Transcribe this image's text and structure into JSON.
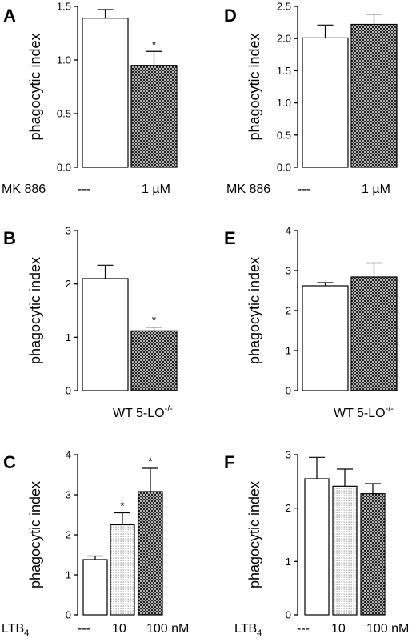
{
  "chart_data": [
    {
      "panel": "A",
      "type": "bar",
      "ylabel": "phagocytic index",
      "ylim": [
        0,
        1.5
      ],
      "yticks": [
        "0.0",
        "0.5",
        "1.0",
        "1.5"
      ],
      "row_label": "MK 886",
      "categories": [
        "---",
        "1 µM"
      ],
      "values": [
        1.39,
        0.95
      ],
      "errors": [
        0.08,
        0.13
      ],
      "fills": [
        "white",
        "crosshatch"
      ],
      "significance": [
        "",
        "*"
      ]
    },
    {
      "panel": "D",
      "type": "bar",
      "ylabel": "phagocytic index",
      "ylim": [
        0,
        2.5
      ],
      "yticks": [
        "0.0",
        "0.5",
        "1.0",
        "1.5",
        "2.0",
        "2.5"
      ],
      "row_label": "MK 886",
      "categories": [
        "---",
        "1 µM"
      ],
      "values": [
        2.01,
        2.22
      ],
      "errors": [
        0.2,
        0.16
      ],
      "fills": [
        "white",
        "crosshatch"
      ],
      "significance": [
        "",
        ""
      ]
    },
    {
      "panel": "B",
      "type": "bar",
      "ylabel": "phagocytic index",
      "ylim": [
        0,
        3
      ],
      "yticks": [
        "0",
        "1",
        "2",
        "3"
      ],
      "row_label": "",
      "categories": [
        "WT",
        "5-LO"
      ],
      "category_sup": [
        "",
        "-/-"
      ],
      "values": [
        2.1,
        1.12
      ],
      "errors": [
        0.25,
        0.07
      ],
      "fills": [
        "white",
        "crosshatch"
      ],
      "significance": [
        "",
        "*"
      ]
    },
    {
      "panel": "E",
      "type": "bar",
      "ylabel": "phagocytic index",
      "ylim": [
        0,
        4
      ],
      "yticks": [
        "0",
        "1",
        "2",
        "3",
        "4"
      ],
      "row_label": "",
      "categories": [
        "WT",
        "5-LO"
      ],
      "category_sup": [
        "",
        "-/-"
      ],
      "values": [
        2.62,
        2.84
      ],
      "errors": [
        0.08,
        0.35
      ],
      "fills": [
        "white",
        "crosshatch"
      ],
      "significance": [
        "",
        ""
      ]
    },
    {
      "panel": "C",
      "type": "bar",
      "ylabel": "phagocytic index",
      "ylim": [
        0,
        4
      ],
      "yticks": [
        "0",
        "1",
        "2",
        "3",
        "4"
      ],
      "row_label": "LTB",
      "row_label_sub": "4",
      "categories": [
        "---",
        "10",
        "100 nM"
      ],
      "values": [
        1.38,
        2.25,
        3.08
      ],
      "errors": [
        0.09,
        0.3,
        0.58
      ],
      "fills": [
        "white",
        "dots",
        "crosshatch"
      ],
      "significance": [
        "",
        "*",
        "*"
      ]
    },
    {
      "panel": "F",
      "type": "bar",
      "ylabel": "phagocytic index",
      "ylim": [
        0,
        3
      ],
      "yticks": [
        "0",
        "1",
        "2",
        "3"
      ],
      "row_label": "LTB",
      "row_label_sub": "4",
      "categories": [
        "---",
        "10",
        "100 nM"
      ],
      "values": [
        2.55,
        2.41,
        2.27
      ],
      "errors": [
        0.4,
        0.32,
        0.19
      ],
      "fills": [
        "white",
        "dots",
        "crosshatch"
      ],
      "significance": [
        "",
        "",
        ""
      ]
    }
  ]
}
